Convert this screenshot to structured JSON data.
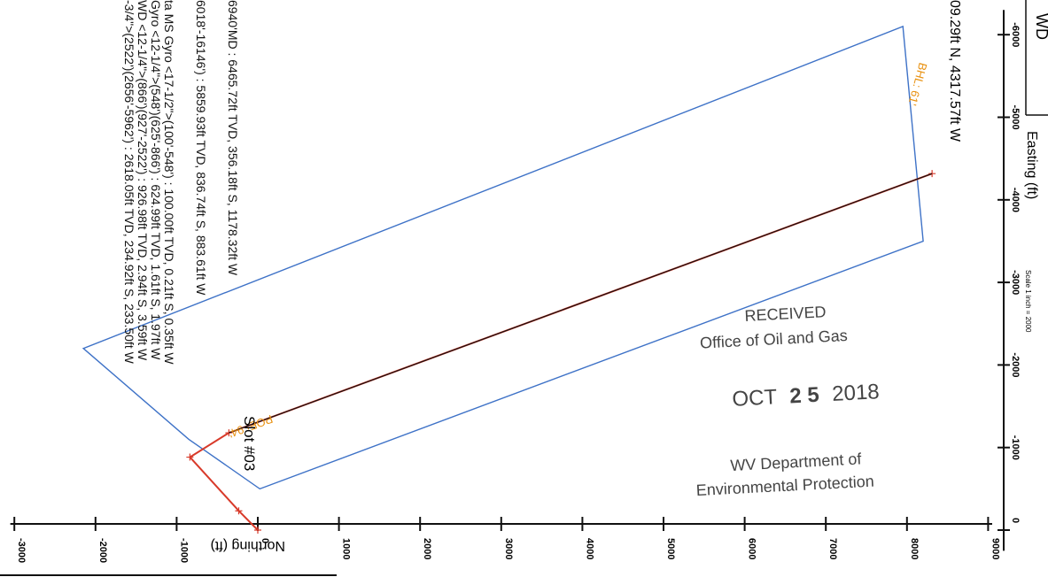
{
  "chart_data": {
    "type": "line",
    "easting_axis": {
      "label": "Easting (ft)",
      "ticks": [
        -6000,
        -5000,
        -4000,
        -3000,
        -2000,
        -1000,
        0
      ],
      "tick_labels": [
        "-6000",
        "-5000",
        "-4000",
        "-3000",
        "-2000",
        "-1000",
        "0"
      ],
      "scale_note": "Scale 1 inch = 2000"
    },
    "northing_axis": {
      "label": "Northing (ft)",
      "ticks": [
        -3000,
        -2000,
        -1000,
        0,
        1000,
        2000,
        3000,
        4000,
        5000,
        6000,
        7000,
        8000,
        9000
      ],
      "tick_labels": [
        "-3000",
        "-2000",
        "-1000",
        "0",
        "1000",
        "2000",
        "3000",
        "4000",
        "5000",
        "6000",
        "7000",
        "8000",
        "9000"
      ]
    },
    "series": [
      {
        "points": [
          [
            0,
            0
          ],
          [
            -233.5,
            -234.92
          ],
          [
            -883.61,
            -836.74
          ],
          [
            -1178.32,
            -356.18
          ],
          [
            -4317.57,
            8309.29
          ]
        ],
        "color": "#d83a2a"
      },
      {
        "points": [
          [
            -1178.32,
            -356.18
          ],
          [
            -4317.57,
            8309.29
          ]
        ],
        "color": "#111111"
      }
    ],
    "lease_boundary": {
      "points": [
        [
          -500,
          25
        ],
        [
          -3500,
          8200
        ],
        [
          -6100,
          7950
        ],
        [
          -2200,
          -2150
        ],
        [
          -1100,
          -850
        ]
      ],
      "color": "#3e72c7"
    },
    "annotations": [
      {
        "text": "BHL: 61'",
        "color": "#e8900f"
      },
      {
        "text": "POE: 94'",
        "color": "#e8900f"
      },
      {
        "text": "Slot #03"
      }
    ]
  },
  "header": {
    "title_fragment": "WD",
    "top_target_text": "09.29ft N, 4317.57ft W"
  },
  "survey_notes": [
    "6940'MD : 6465.72ft TVD, 356.18ft S, 1178.32ft W",
    "6018'-16146') : 5859.93ft TVD, 836.74ft S, 883.61ft W",
    "ta MS Gyro <17-1/2\">(100'-548') : 100.00ft TVD, 0.21ft S, 0.35ft W",
    "Gyro <12-1/4\">(548')(625'-866') : 624.99ft TVD, 1.61ft S, 1.97ft W",
    "WD <12-1/4\">(866')(927'-2522') : 926.98ft TVD, 2.94ft S, 3.59ft W",
    "-3/4\">(2522')(2656'-5962') : 2618.05ft TVD, 234.92ft S, 233.50ft W"
  ],
  "stamp": {
    "line1": "RECEIVED",
    "line2": "Office of Oil and Gas",
    "date_month": "OCT",
    "date_day": "2 5",
    "date_year": "2018",
    "dept1": "WV Department of",
    "dept2": "Environmental Protection"
  }
}
